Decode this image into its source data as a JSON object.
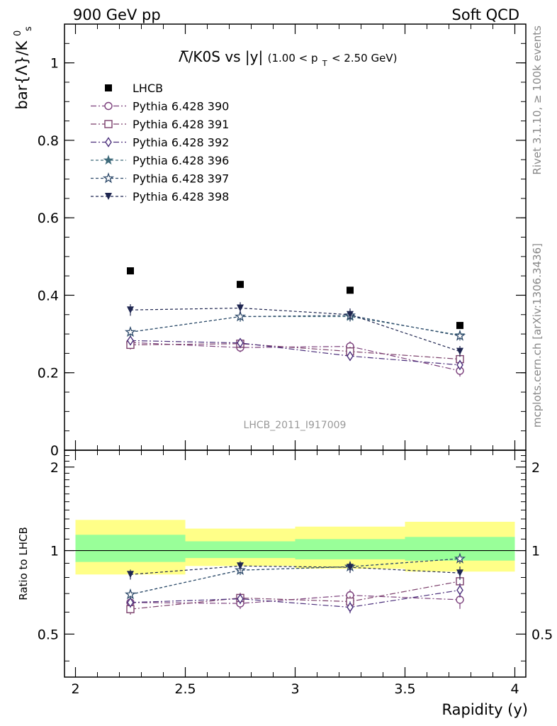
{
  "header": {
    "left": "900 GeV pp",
    "right": "Soft QCD"
  },
  "side_labels": {
    "rivet": "Rivet 3.1.10, ≥ 100k events",
    "mcplots": "mcplots.cern.ch [arXiv:1306.3436]"
  },
  "watermark": "LHCB_2011_I917009",
  "chart_data": [
    {
      "type": "scatter",
      "title_main": "Λ̅/K0S vs |y|",
      "title_cut": "(1.00 < p",
      "title_cut_sub": "T",
      "title_cut_end": " < 2.50 GeV)",
      "ylabel": "bar{Λ}/K",
      "ylabel_sup": "0",
      "ylabel_sub": "s",
      "xlim": [
        1.95,
        4.05
      ],
      "ylim": [
        0,
        1.1
      ],
      "yticks": [
        "0",
        "0.2",
        "0.4",
        "0.6",
        "0.8",
        "1"
      ],
      "x": [
        2.25,
        2.75,
        3.25,
        3.75
      ],
      "data": {
        "name": "LHCB",
        "values": [
          0.463,
          0.428,
          0.413,
          0.322
        ],
        "errors": [
          0.004,
          0.004,
          0.004,
          0.005
        ]
      },
      "series": [
        {
          "name": "Pythia 6.428 390",
          "values": [
            0.278,
            0.265,
            0.268,
            0.205
          ],
          "errors": [
            0.012,
            0.012,
            0.013,
            0.015
          ],
          "color": "#7b3f7b",
          "marker": "circle-open",
          "dash": "8 3 2 3"
        },
        {
          "name": "Pythia 6.428 391",
          "values": [
            0.272,
            0.275,
            0.255,
            0.235
          ],
          "errors": [
            0.012,
            0.012,
            0.012,
            0.013
          ],
          "color": "#7b3f6b",
          "marker": "square-open",
          "dash": "8 3 2 3"
        },
        {
          "name": "Pythia 6.428 392",
          "values": [
            0.283,
            0.277,
            0.243,
            0.22
          ],
          "errors": [
            0.012,
            0.012,
            0.012,
            0.013
          ],
          "color": "#4b2f7b",
          "marker": "diamond-open",
          "dash": "8 3 2 3"
        },
        {
          "name": "Pythia 6.428 396",
          "values": [
            0.305,
            0.345,
            0.345,
            0.297
          ],
          "errors": [
            0.012,
            0.013,
            0.013,
            0.012
          ],
          "color": "#3f6b7b",
          "marker": "star-filled",
          "dash": "4 3"
        },
        {
          "name": "Pythia 6.428 397",
          "values": [
            0.305,
            0.345,
            0.348,
            0.295
          ],
          "errors": [
            0.012,
            0.013,
            0.013,
            0.012
          ],
          "color": "#2f4b6b",
          "marker": "star-open",
          "dash": "4 3"
        },
        {
          "name": "Pythia 6.428 398",
          "values": [
            0.362,
            0.367,
            0.35,
            0.255
          ],
          "errors": [
            0.015,
            0.015,
            0.016,
            0.014
          ],
          "color": "#1f2650",
          "marker": "triangle-down-filled",
          "dash": "4 3"
        }
      ],
      "legend_position": "top-left"
    },
    {
      "type": "scatter",
      "ylabel": "Ratio to LHCB",
      "xlabel": "Rapidity (y)",
      "xlim": [
        1.95,
        4.05
      ],
      "xticks": [
        "2",
        "2.5",
        "3",
        "3.5",
        "4"
      ],
      "ylim": [
        0.35,
        2.3
      ],
      "yticks": [
        "0.5",
        "1",
        "2"
      ],
      "bands": [
        {
          "x": [
            2.0,
            2.5
          ],
          "inner": [
            0.91,
            1.14
          ],
          "outer": [
            0.82,
            1.29
          ]
        },
        {
          "x": [
            2.5,
            3.0
          ],
          "inner": [
            0.94,
            1.08
          ],
          "outer": [
            0.88,
            1.2
          ]
        },
        {
          "x": [
            3.0,
            3.5
          ],
          "inner": [
            0.93,
            1.1
          ],
          "outer": [
            0.86,
            1.22
          ]
        },
        {
          "x": [
            3.5,
            4.0
          ],
          "inner": [
            0.92,
            1.12
          ],
          "outer": [
            0.84,
            1.27
          ]
        }
      ],
      "x": [
        2.25,
        2.75,
        3.25,
        3.75
      ],
      "series": [
        {
          "name": "Pythia 6.428 390",
          "values": [
            0.65,
            0.645,
            0.69,
            0.665
          ]
        },
        {
          "name": "Pythia 6.428 391",
          "values": [
            0.615,
            0.675,
            0.655,
            0.775
          ]
        },
        {
          "name": "Pythia 6.428 392",
          "values": [
            0.65,
            0.67,
            0.625,
            0.72
          ]
        },
        {
          "name": "Pythia 6.428 396",
          "values": [
            0.695,
            0.85,
            0.875,
            0.935
          ]
        },
        {
          "name": "Pythia 6.428 397",
          "values": [
            0.695,
            0.85,
            0.875,
            0.935
          ]
        },
        {
          "name": "Pythia 6.428 398",
          "values": [
            0.82,
            0.88,
            0.87,
            0.83
          ]
        }
      ]
    }
  ]
}
